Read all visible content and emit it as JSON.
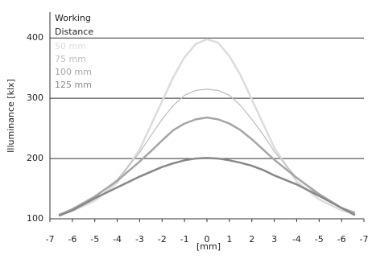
{
  "chart_data": {
    "type": "line",
    "y_label": "Illuminance [klx]",
    "x_label": "[mm]",
    "legend_title": [
      "Working",
      "Distance"
    ],
    "x": [
      -6.6,
      -6,
      -5,
      -4,
      -3,
      -2.5,
      -2,
      -1.5,
      -1,
      -0.5,
      0,
      0.5,
      1,
      1.5,
      2,
      2.5,
      3,
      4,
      5,
      6,
      6.6
    ],
    "series": [
      {
        "name": "50 mm",
        "color": "#dcdcdc",
        "width": 2.5,
        "values": [
          106,
          113,
          130,
          160,
          215,
          255,
          295,
          335,
          368,
          390,
          398,
          392,
          370,
          338,
          298,
          258,
          218,
          162,
          132,
          114,
          108
        ]
      },
      {
        "name": "75 mm",
        "color": "#bcbcbc",
        "width": 1.2,
        "values": [
          108,
          116,
          135,
          165,
          210,
          238,
          265,
          288,
          305,
          313,
          315,
          313,
          305,
          288,
          265,
          240,
          212,
          168,
          138,
          118,
          110
        ]
      },
      {
        "name": "100 mm",
        "color": "#a6a6a6",
        "width": 2.5,
        "values": [
          106,
          116,
          137,
          163,
          195,
          212,
          230,
          247,
          258,
          265,
          268,
          265,
          258,
          247,
          232,
          215,
          198,
          168,
          141,
          118,
          110
        ]
      },
      {
        "name": "125 mm",
        "color": "#888888",
        "width": 2.5,
        "values": [
          105,
          114,
          134,
          152,
          170,
          178,
          186,
          192,
          197,
          200,
          201,
          200,
          197,
          193,
          188,
          181,
          172,
          157,
          138,
          118,
          106
        ]
      }
    ],
    "xlim": [
      -7,
      7
    ],
    "xticks": [
      -7,
      -6,
      -5,
      -4,
      -3,
      -2,
      -1,
      0,
      1,
      2,
      3,
      {
        "value": 4,
        "label": "-4"
      },
      {
        "value": 5,
        "label": "-5"
      },
      {
        "value": 6,
        "label": "-6"
      },
      {
        "value": 7,
        "label": "-7"
      }
    ],
    "ylim": [
      100,
      443
    ],
    "yticks": [
      100,
      200,
      300,
      400
    ],
    "grid": true,
    "legend": "upper left"
  }
}
